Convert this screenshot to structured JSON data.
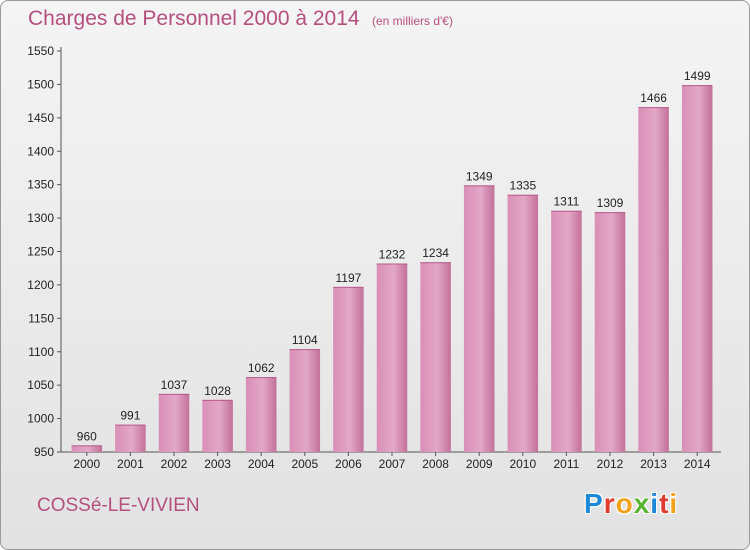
{
  "chart_data": {
    "type": "bar",
    "title": "Charges de Personnel 2000 à 2014",
    "subtitle": "(en milliers d'€)",
    "categories": [
      "2000",
      "2001",
      "2002",
      "2003",
      "2004",
      "2005",
      "2006",
      "2007",
      "2008",
      "2009",
      "2010",
      "2011",
      "2012",
      "2013",
      "2014"
    ],
    "values": [
      960,
      991,
      1037,
      1028,
      1062,
      1104,
      1197,
      1232,
      1234,
      1349,
      1335,
      1311,
      1309,
      1466,
      1499
    ],
    "ylim": [
      950,
      1550
    ],
    "yticks": [
      950,
      1000,
      1050,
      1100,
      1150,
      1200,
      1250,
      1300,
      1350,
      1400,
      1450,
      1500,
      1550
    ],
    "grid": false,
    "bar_color": "#c86a9b"
  },
  "footer": {
    "city": "COSSé-LE-VIVIEN",
    "logo": "Proxiti"
  },
  "colors": {
    "text_accent": "#b5507e",
    "logo_letters": [
      "#1e88d8",
      "#e23a2e",
      "#f3a21b",
      "#57b42e",
      "#1e88d8",
      "#e23a2e",
      "#f3a21b"
    ]
  }
}
